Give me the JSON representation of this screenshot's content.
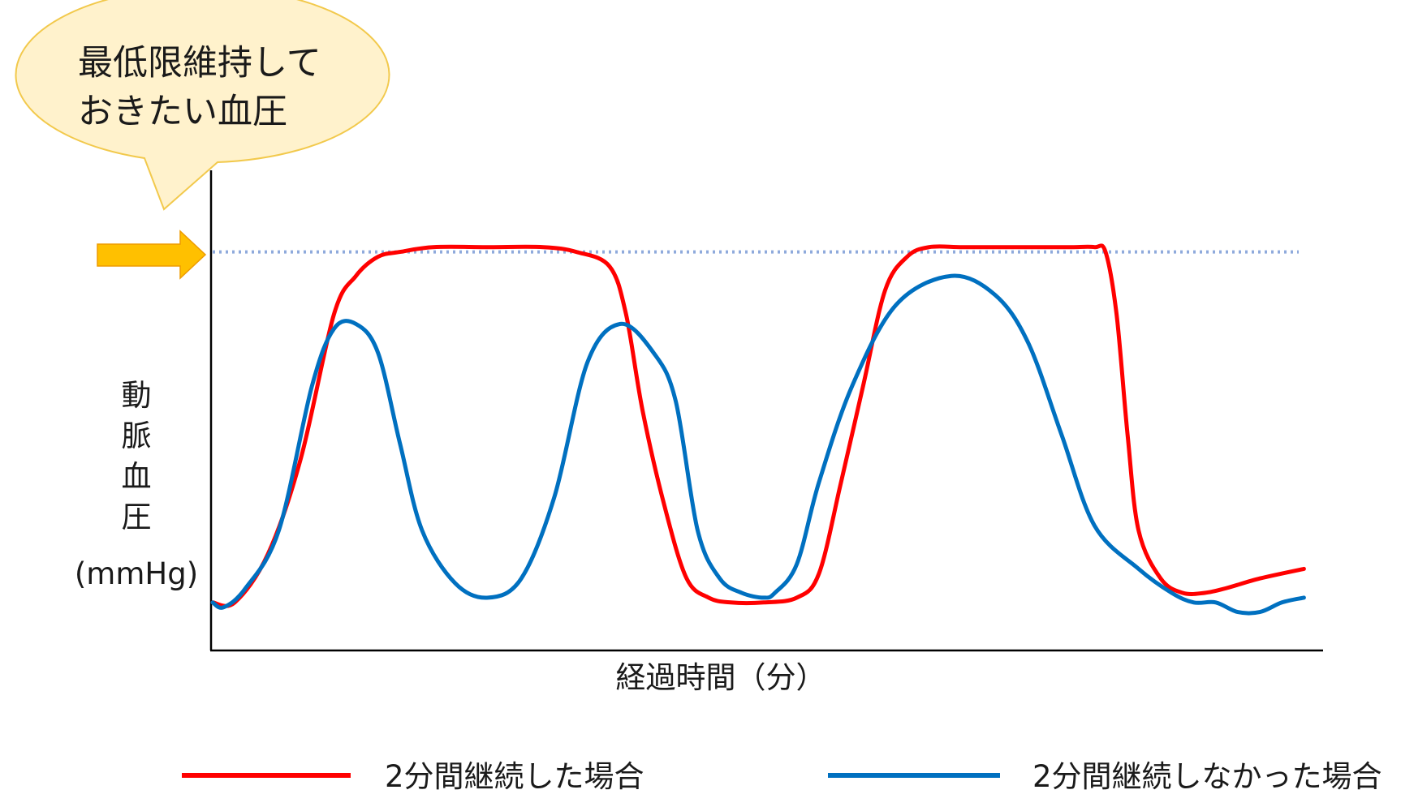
{
  "chart_data": {
    "type": "line",
    "title": "",
    "xlabel": "経過時間（分）",
    "ylabel_chars": [
      "動",
      "脈",
      "血",
      "圧"
    ],
    "ylabel_unit": "(mmHg)",
    "xlim": [
      0,
      100
    ],
    "ylim": [
      0,
      100
    ],
    "grid": false,
    "legend_placement": "bottom",
    "threshold": {
      "value": 83,
      "callout_lines": [
        "最低限維持して",
        "おきたい血圧"
      ],
      "line_color": "#8FAADC",
      "arrow_color": "#FFC000",
      "bubble_color": "#FFF2CC"
    },
    "series": [
      {
        "name": "2分間継続した場合",
        "color": "#FF0000",
        "x": [
          0,
          2,
          5,
          8,
          11,
          13,
          15,
          17,
          20,
          25,
          30,
          33,
          36,
          37.5,
          39,
          41,
          43,
          45,
          47,
          50,
          53,
          55,
          57,
          59,
          61,
          63,
          65,
          68,
          72,
          76,
          78,
          80,
          81,
          82,
          83,
          84,
          86,
          88,
          90,
          92,
          95,
          99
        ],
        "y": [
          10,
          10,
          20,
          40,
          70,
          78,
          82,
          83,
          84,
          84,
          84,
          83,
          80,
          70,
          50,
          30,
          15,
          11,
          10,
          10,
          11,
          16,
          35,
          55,
          75,
          82,
          84,
          84,
          84,
          84,
          84,
          84,
          83,
          70,
          45,
          25,
          15,
          12,
          12,
          13,
          15,
          17
        ]
      },
      {
        "name": "2分間継続しなかった場合",
        "color": "#0070C0",
        "x": [
          0,
          1,
          3,
          6,
          9,
          11,
          13,
          15,
          17,
          19,
          22,
          25,
          28,
          31,
          34,
          37,
          40,
          42,
          44,
          46,
          48,
          50,
          51,
          53,
          55,
          58,
          62,
          67,
          71,
          74,
          77,
          80,
          84,
          87,
          89,
          91,
          93,
          95,
          97,
          99
        ],
        "y": [
          10,
          9,
          13,
          25,
          55,
          67,
          68,
          62,
          43,
          25,
          14,
          11,
          15,
          32,
          60,
          68,
          62,
          52,
          25,
          15,
          12,
          11,
          12,
          18,
          35,
          55,
          72,
          78,
          74,
          64,
          45,
          26,
          17,
          12,
          10,
          10,
          8,
          8,
          10,
          11
        ]
      }
    ]
  }
}
